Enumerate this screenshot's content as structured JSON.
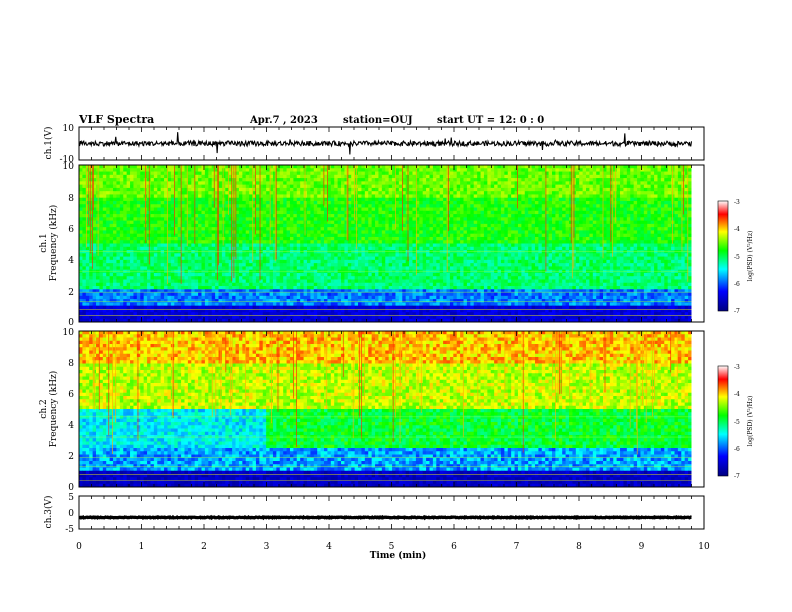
{
  "header": {
    "title": "VLF Spectra",
    "date": "Apr.7 , 2023",
    "station": "station=OUJ",
    "start": "start UT =  12: 0 : 0"
  },
  "chart_data": {
    "type": "heatmap",
    "x": {
      "label": "Time (min)",
      "range": [
        0,
        10
      ],
      "ticks": [
        "0",
        "1",
        "2",
        "3",
        "4",
        "5",
        "6",
        "7",
        "8",
        "9",
        "10"
      ]
    },
    "panels": [
      {
        "kind": "waveform",
        "ylabel": "ch.1(V)",
        "ylim": [
          -10,
          10
        ],
        "yticks": [
          "10",
          "-10"
        ],
        "baseline": 0
      },
      {
        "kind": "spectrogram",
        "ylabel_top": "ch.1",
        "ylabel": "Frequency (kHz)",
        "ylim": [
          0,
          10
        ],
        "yticks": [
          "10",
          "8",
          "6",
          "4",
          "2",
          "0"
        ],
        "colorbar": {
          "label": "log(PSD) (V²/Hz)",
          "range": [
            -7,
            -3
          ],
          "ticks": [
            "-3",
            "-4",
            "-5",
            "-6",
            "-7"
          ]
        }
      },
      {
        "kind": "spectrogram",
        "ylabel_top": "ch.2",
        "ylabel": "Frequency (kHz)",
        "ylim": [
          0,
          10
        ],
        "yticks": [
          "10",
          "8",
          "6",
          "4",
          "2",
          "0"
        ],
        "colorbar": {
          "label": "log(PSD) (V²/Hz)",
          "range": [
            -7,
            -3
          ],
          "ticks": [
            "-3",
            "-4",
            "-5",
            "-6",
            "-7"
          ]
        }
      },
      {
        "kind": "waveform",
        "ylabel": "ch.3(V)",
        "ylim": [
          -5,
          5
        ],
        "yticks": [
          "5",
          "0",
          "-5"
        ],
        "baseline": -1.5
      }
    ],
    "data_end_min": 9.8,
    "colors": {
      "scale": [
        "#000080",
        "#0000ff",
        "#00ffff",
        "#00ff00",
        "#ffff00",
        "#ff0000",
        "#ffffff"
      ]
    }
  }
}
